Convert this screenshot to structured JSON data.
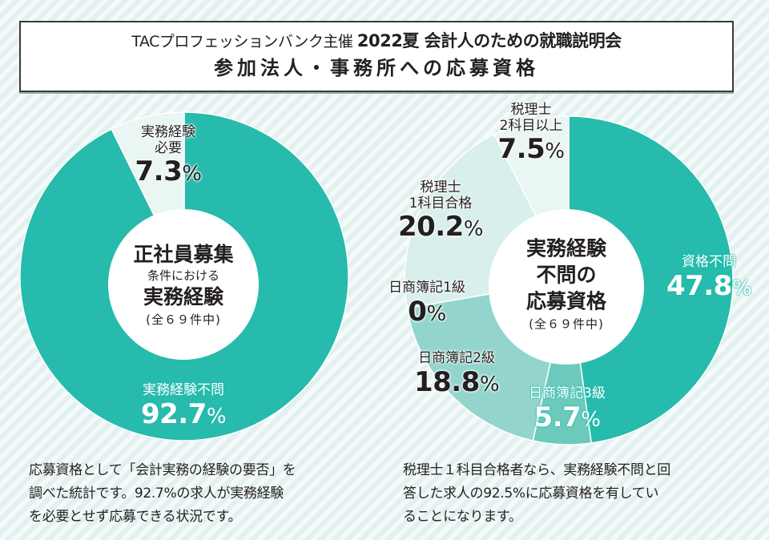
{
  "header": {
    "organizer": "TACプロフェッションバンク主催",
    "event": "2022夏 会計人のための就職説明会",
    "title": "参加法人・事務所への応募資格"
  },
  "colors": {
    "accent": "#26b5a6",
    "teal": "#26bbac",
    "teal_mid": "#6ccabc",
    "teal_light": "#93d5cc",
    "teal_pale": "#d8efec",
    "teal_palest": "#e9f6f4",
    "text": "#231f20"
  },
  "chart_data": [
    {
      "type": "pie",
      "variant": "donut",
      "title": "正社員募集 条件における 実務経験",
      "center": {
        "line1": "正社員募集",
        "line2": "条件における",
        "line3": "実務経験",
        "note": "(全６９件中)"
      },
      "total_count": 69,
      "slices": [
        {
          "label": "実務経験不問",
          "value": 92.7,
          "display": "92.7",
          "unit": "%",
          "color": "#26bbac"
        },
        {
          "label": "実務経験必要",
          "label_lines": [
            "実務経験",
            "必要"
          ],
          "value": 7.3,
          "display": "7.3",
          "unit": "%",
          "color": "#e9f6f4"
        }
      ]
    },
    {
      "type": "pie",
      "variant": "donut",
      "title": "実務経験不問の応募資格",
      "center": {
        "line1": "実務経験",
        "line2": "不問の",
        "line3": "応募資格",
        "note": "(全６９件中)"
      },
      "total_count": 69,
      "slices": [
        {
          "label": "資格不問",
          "value": 47.8,
          "display": "47.8",
          "unit": "%",
          "color": "#26bbac"
        },
        {
          "label": "日商簿記3級",
          "value": 5.7,
          "display": "5.7",
          "unit": "%",
          "color": "#6ccabc"
        },
        {
          "label": "日商簿記2級",
          "value": 18.8,
          "display": "18.8",
          "unit": "%",
          "color": "#93d5cc"
        },
        {
          "label": "日商簿記1級",
          "value": 0,
          "display": "0",
          "unit": "%",
          "color": "#93d5cc"
        },
        {
          "label": "税理士1科目合格",
          "label_lines": [
            "税理士",
            "1科目合格"
          ],
          "value": 20.2,
          "display": "20.2",
          "unit": "%",
          "color": "#d8efec"
        },
        {
          "label": "税理士2科目以上",
          "label_lines": [
            "税理士",
            "2科目以上"
          ],
          "value": 7.5,
          "display": "7.5",
          "unit": "%",
          "color": "#e9f6f4"
        }
      ]
    }
  ],
  "notes": {
    "left": [
      "応募資格として「会計実務の経験の要否」を",
      "調べた統計です。92.7%の求人が実務経験",
      "を必要とせず応募できる状況です。"
    ],
    "right": [
      "税理士１科目合格者なら、実務経験不問と回",
      "答した求人の92.5%に応募資格を有してい",
      "ることになります。"
    ]
  }
}
